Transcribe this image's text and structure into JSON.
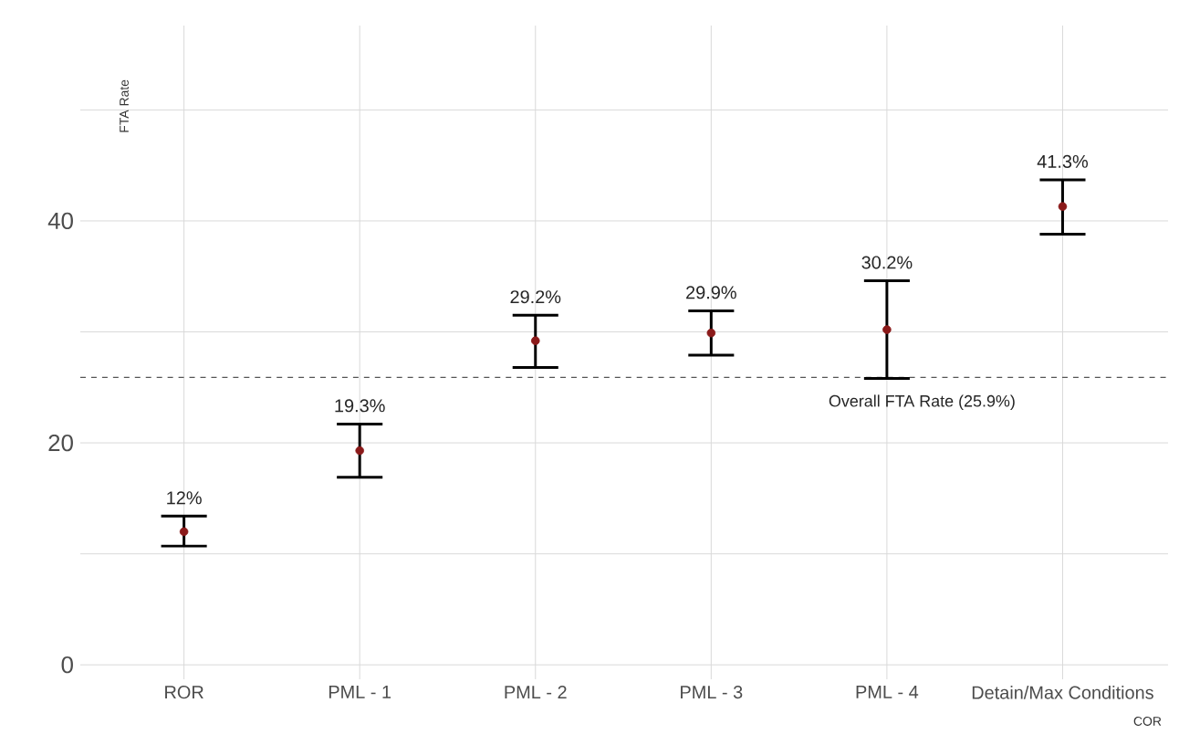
{
  "chart_data": {
    "type": "scatter",
    "xlabel": "COR",
    "ylabel": "FTA Rate",
    "categories": [
      "ROR",
      "PML - 1",
      "PML - 2",
      "PML - 3",
      "PML - 4",
      "Detain/Max Conditions"
    ],
    "series": [
      {
        "color": "#8b1a1a",
        "values": [
          12,
          19.3,
          29.2,
          29.9,
          30.2,
          41.3
        ],
        "errors": [
          [
            10.7,
            13.4
          ],
          [
            16.9,
            21.7
          ],
          [
            26.8,
            31.5
          ],
          [
            27.9,
            31.9
          ],
          [
            25.8,
            34.6
          ],
          [
            38.8,
            43.7
          ]
        ],
        "value_labels": [
          "12%",
          "19.3%",
          "29.2%",
          "29.9%",
          "30.2%",
          "41.3%"
        ]
      }
    ],
    "ylim": [
      -1.3,
      57.6
    ],
    "yticks": [
      0,
      {
        "value": 10,
        "label": null
      },
      20,
      {
        "value": 30,
        "label": null
      },
      40,
      {
        "value": 50,
        "label": null
      }
    ],
    "ref_lines": [
      {
        "axis": "y",
        "value": 25.9,
        "label": "Overall FTA Rate (25.9%)",
        "color": "#555555",
        "line_style": "dashed"
      }
    ],
    "grid": true,
    "marker": "circle"
  }
}
